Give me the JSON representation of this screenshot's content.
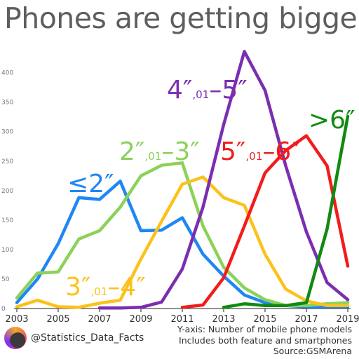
{
  "title": "Phones are getting bigger",
  "footer": {
    "handle": "@Statistics_Data_Facts",
    "notes": [
      "Y-axis: Number of mobile phone models",
      "Includes both feature and smartphones",
      "Source:GSMArena"
    ]
  },
  "chart_data": {
    "type": "line",
    "title": "Phones are getting bigger",
    "ylabel": "Number of mobile phone models",
    "xlim": [
      2003,
      2019
    ],
    "ylim": [
      0,
      440
    ],
    "x_ticks": [
      2003,
      2005,
      2007,
      2009,
      2011,
      2013,
      2015,
      2017,
      2019
    ],
    "y_ticks": [
      0,
      50,
      100,
      150,
      200,
      250,
      300,
      350,
      400
    ],
    "grid": false,
    "series": [
      {
        "name": "≤2″",
        "color": "#1f87f5",
        "x": [
          2003,
          2004,
          2005,
          2006,
          2007,
          2008,
          2009,
          2010,
          2011,
          2012,
          2013,
          2014,
          2015,
          2016,
          2017,
          2018,
          2019
        ],
        "values": [
          10,
          50,
          110,
          188,
          185,
          216,
          132,
          133,
          154,
          92,
          55,
          23,
          10,
          5,
          3,
          3,
          3
        ]
      },
      {
        "name": "2″,01–3″",
        "color": "#8bd15a",
        "x": [
          2003,
          2004,
          2005,
          2006,
          2007,
          2008,
          2009,
          2010,
          2011,
          2012,
          2013,
          2014,
          2015,
          2016,
          2017,
          2018,
          2019
        ],
        "values": [
          18,
          60,
          62,
          118,
          132,
          172,
          225,
          243,
          247,
          140,
          70,
          35,
          15,
          5,
          5,
          8,
          10
        ]
      },
      {
        "name": "3″,01–4″",
        "color": "#fcc21b",
        "x": [
          2003,
          2004,
          2005,
          2006,
          2007,
          2008,
          2009,
          2010,
          2011,
          2012,
          2013,
          2014,
          2015,
          2016,
          2017,
          2018,
          2019
        ],
        "values": [
          3,
          14,
          3,
          2,
          9,
          14,
          84,
          148,
          211,
          223,
          188,
          175,
          92,
          33,
          13,
          5,
          5
        ]
      },
      {
        "name": "4″,01–5″",
        "color": "#7b2eb0",
        "x": [
          2007,
          2008,
          2009,
          2010,
          2011,
          2012,
          2013,
          2014,
          2015,
          2016,
          2017,
          2018,
          2019
        ],
        "values": [
          1,
          1,
          2,
          11,
          67,
          172,
          312,
          436,
          370,
          242,
          130,
          44,
          15
        ]
      },
      {
        "name": "5″,01–6″",
        "color": "#f21c1c",
        "x": [
          2011,
          2012,
          2013,
          2014,
          2015,
          2016,
          2017,
          2018,
          2019
        ],
        "values": [
          2,
          6,
          52,
          140,
          230,
          268,
          293,
          242,
          72
        ]
      },
      {
        "name": ">6″",
        "color": "#118a11",
        "x": [
          2013,
          2014,
          2015,
          2016,
          2017,
          2018,
          2019
        ],
        "values": [
          2,
          8,
          5,
          5,
          10,
          135,
          326
        ]
      }
    ]
  }
}
